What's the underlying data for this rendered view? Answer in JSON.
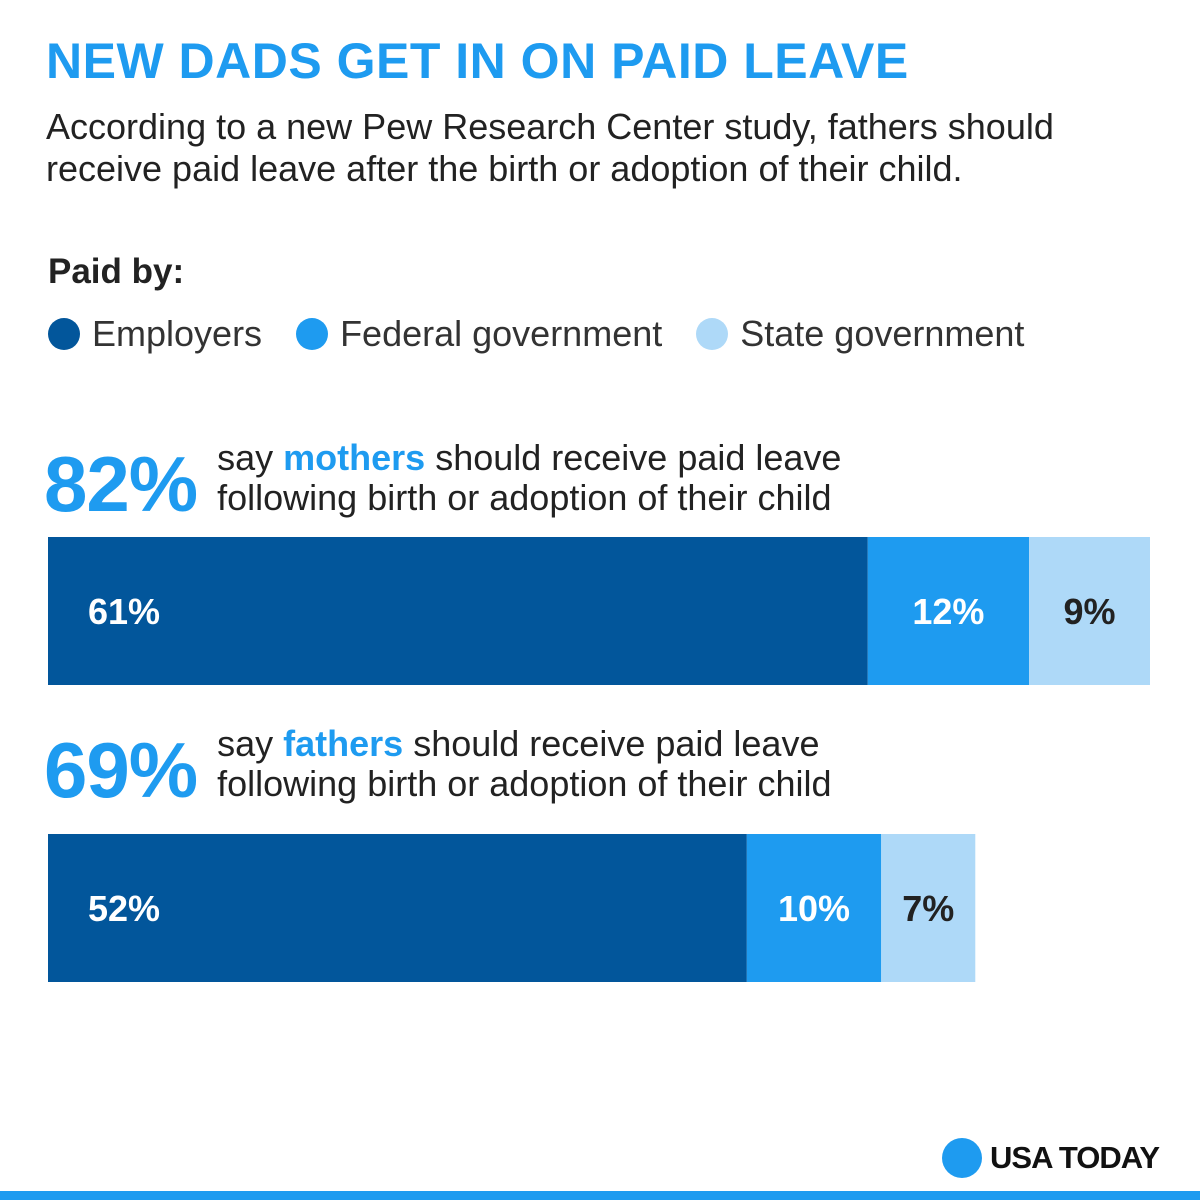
{
  "header": {
    "title": "NEW DADS GET IN ON PAID LEAVE",
    "subtitle": "According to a new Pew Research Center study, fathers should receive paid leave after the birth or adoption of their child."
  },
  "legend": {
    "heading": "Paid by:",
    "items": [
      {
        "label": "Employers",
        "color": "#02569b"
      },
      {
        "label": "Federal government",
        "color": "#1e9bf0"
      },
      {
        "label": "State government",
        "color": "#aed9f8"
      }
    ]
  },
  "stats": [
    {
      "percent": "82%",
      "text_before": "say ",
      "highlight": "mothers",
      "text_after": " should receive paid leave",
      "line2": "following birth or adoption of their child"
    },
    {
      "percent": "69%",
      "text_before": "say ",
      "highlight": "fathers",
      "text_after": " should receive paid leave",
      "line2": "following birth or adoption of their child"
    }
  ],
  "chart_data": {
    "type": "bar",
    "orientation": "horizontal",
    "stacked": true,
    "categories": [
      "mothers",
      "fathers"
    ],
    "series": [
      {
        "name": "Employers",
        "values": [
          61,
          52
        ],
        "labels": [
          "61%",
          "52%"
        ],
        "color": "#02569b",
        "label_color": "#ffffff"
      },
      {
        "name": "Federal government",
        "values": [
          12,
          10
        ],
        "labels": [
          "12%",
          "10%"
        ],
        "color": "#1e9bf0",
        "label_color": "#ffffff"
      },
      {
        "name": "State government",
        "values": [
          9,
          7
        ],
        "labels": [
          "9%",
          "7%"
        ],
        "color": "#aed9f8",
        "label_color": "#222222"
      }
    ],
    "xlim": [
      0,
      82
    ]
  },
  "branding": {
    "logo_text": "USA TODAY"
  }
}
